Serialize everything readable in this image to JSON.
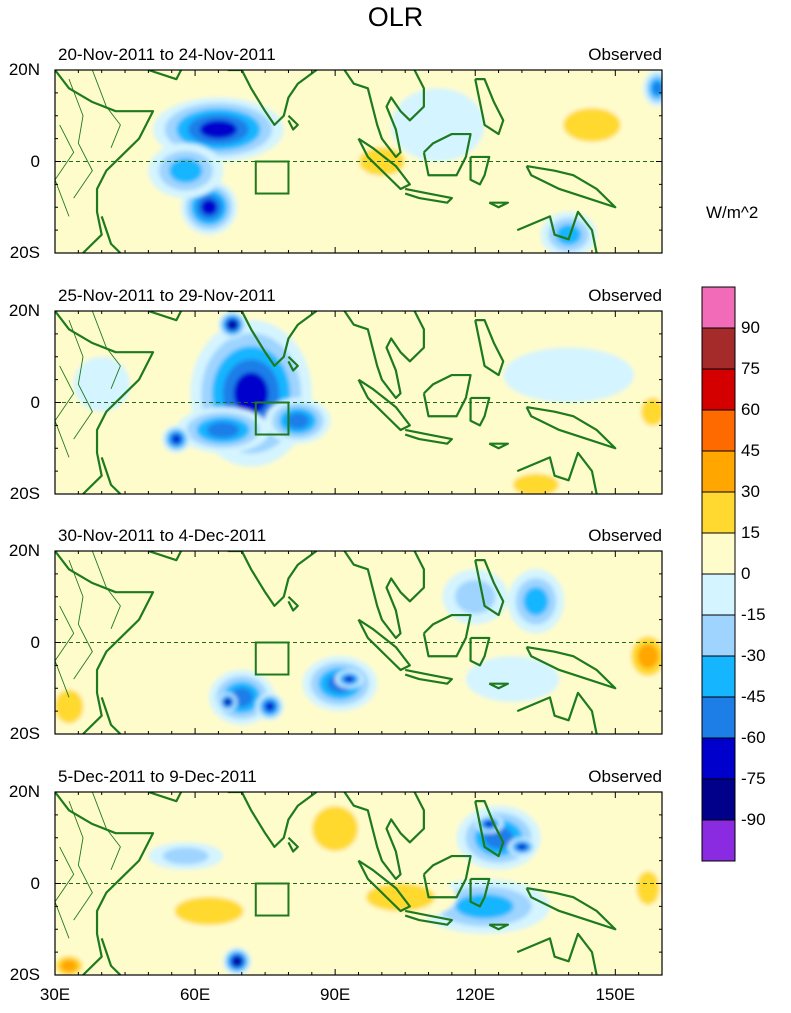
{
  "chart_data": {
    "type": "heatmap",
    "title": "OLR",
    "units": "W/m^2",
    "x_ticks": [
      "30E",
      "60E",
      "90E",
      "120E",
      "150E"
    ],
    "x_tick_values": [
      30,
      60,
      90,
      120,
      150
    ],
    "x_range": [
      30,
      160
    ],
    "y_ticks": [
      "20N",
      "0",
      "20S"
    ],
    "y_tick_values": [
      20,
      0,
      -20
    ],
    "y_range": [
      -20,
      20
    ],
    "colorbar": {
      "labels": [
        "90",
        "75",
        "60",
        "45",
        "30",
        "15",
        "0",
        "-15",
        "-30",
        "-45",
        "-60",
        "-75",
        "-90"
      ],
      "colors": [
        "#f26bb8",
        "#a52a2a",
        "#d40000",
        "#ff6a00",
        "#ffa600",
        "#ffd92f",
        "#fffccc",
        "#d4f4ff",
        "#9fd4ff",
        "#15b5ff",
        "#1e7ee8",
        "#0000cd",
        "#00008b",
        "#8a2be2"
      ]
    },
    "reference_box": {
      "lon": [
        73,
        80
      ],
      "lat": [
        -7,
        0
      ]
    },
    "panels": [
      {
        "label": "20-Nov-2011 to 24-Nov-2011",
        "tag": "Observed",
        "anomalies": [
          {
            "lon": 65,
            "lat": 7,
            "rx": 14,
            "ry": 7,
            "value": -70
          },
          {
            "lon": 63,
            "lat": -10,
            "rx": 6,
            "ry": 6,
            "value": -75
          },
          {
            "lon": 58,
            "lat": -2,
            "rx": 8,
            "ry": 6,
            "value": -40
          },
          {
            "lon": 100,
            "lat": 0,
            "rx": 8,
            "ry": 5,
            "value": 25
          },
          {
            "lon": 95,
            "lat": -10,
            "rx": 16,
            "ry": 6,
            "value": 20
          },
          {
            "lon": 128,
            "lat": 12,
            "rx": 10,
            "ry": 7,
            "value": 22
          },
          {
            "lon": 145,
            "lat": 8,
            "rx": 10,
            "ry": 6,
            "value": 25
          },
          {
            "lon": 140,
            "lat": -16,
            "rx": 6,
            "ry": 5,
            "value": -45
          },
          {
            "lon": 159,
            "lat": 16,
            "rx": 3,
            "ry": 4,
            "value": -60
          },
          {
            "lon": 112,
            "lat": 8,
            "rx": 10,
            "ry": 8,
            "value": -20
          },
          {
            "lon": 35,
            "lat": -10,
            "rx": 5,
            "ry": 6,
            "value": 20
          }
        ]
      },
      {
        "label": "25-Nov-2011 to 29-Nov-2011",
        "tag": "Observed",
        "anomalies": [
          {
            "lon": 72,
            "lat": 2,
            "rx": 13,
            "ry": 16,
            "value": -72
          },
          {
            "lon": 68,
            "lat": 17,
            "rx": 3,
            "ry": 3,
            "value": -92
          },
          {
            "lon": 66,
            "lat": -6,
            "rx": 10,
            "ry": 5,
            "value": -65
          },
          {
            "lon": 56,
            "lat": -8,
            "rx": 3,
            "ry": 3,
            "value": -70
          },
          {
            "lon": 82,
            "lat": -4,
            "rx": 7,
            "ry": 5,
            "value": -55
          },
          {
            "lon": 96,
            "lat": 14,
            "rx": 8,
            "ry": 6,
            "value": 20
          },
          {
            "lon": 110,
            "lat": -6,
            "rx": 10,
            "ry": 5,
            "value": 20
          },
          {
            "lon": 133,
            "lat": -18,
            "rx": 8,
            "ry": 4,
            "value": 35
          },
          {
            "lon": 158,
            "lat": -2,
            "rx": 4,
            "ry": 5,
            "value": 30
          },
          {
            "lon": 140,
            "lat": 6,
            "rx": 14,
            "ry": 6,
            "value": -20
          },
          {
            "lon": 40,
            "lat": 4,
            "rx": 6,
            "ry": 6,
            "value": -20
          }
        ]
      },
      {
        "label": "30-Nov-2011 to 4-Dec-2011",
        "tag": "Observed",
        "anomalies": [
          {
            "lon": 70,
            "lat": -12,
            "rx": 7,
            "ry": 6,
            "value": -62
          },
          {
            "lon": 67,
            "lat": -13,
            "rx": 2,
            "ry": 2,
            "value": -92
          },
          {
            "lon": 76,
            "lat": -14,
            "rx": 3,
            "ry": 3,
            "value": -76
          },
          {
            "lon": 91,
            "lat": -9,
            "rx": 8,
            "ry": 6,
            "value": -55
          },
          {
            "lon": 93,
            "lat": -8,
            "rx": 3,
            "ry": 2,
            "value": -80
          },
          {
            "lon": 120,
            "lat": 10,
            "rx": 7,
            "ry": 6,
            "value": -30
          },
          {
            "lon": 133,
            "lat": 9,
            "rx": 6,
            "ry": 7,
            "value": -40
          },
          {
            "lon": 128,
            "lat": -8,
            "rx": 10,
            "ry": 5,
            "value": -20
          },
          {
            "lon": 150,
            "lat": 14,
            "rx": 10,
            "ry": 6,
            "value": 20
          },
          {
            "lon": 157,
            "lat": -3,
            "rx": 5,
            "ry": 6,
            "value": 40
          },
          {
            "lon": 33,
            "lat": -14,
            "rx": 5,
            "ry": 6,
            "value": 35
          },
          {
            "lon": 38,
            "lat": 10,
            "rx": 6,
            "ry": 6,
            "value": 15
          }
        ]
      },
      {
        "label": "5-Dec-2011 to 9-Dec-2011",
        "tag": "Observed",
        "anomalies": [
          {
            "lon": 125,
            "lat": 10,
            "rx": 9,
            "ry": 7,
            "value": -62
          },
          {
            "lon": 123,
            "lat": 13,
            "rx": 3,
            "ry": 2,
            "value": -80
          },
          {
            "lon": 130,
            "lat": 8,
            "rx": 3,
            "ry": 2,
            "value": -82
          },
          {
            "lon": 122,
            "lat": -5,
            "rx": 14,
            "ry": 6,
            "value": -40
          },
          {
            "lon": 69,
            "lat": -17,
            "rx": 3,
            "ry": 3,
            "value": -85
          },
          {
            "lon": 58,
            "lat": 6,
            "rx": 8,
            "ry": 3,
            "value": -35
          },
          {
            "lon": 90,
            "lat": 12,
            "rx": 8,
            "ry": 8,
            "value": 28
          },
          {
            "lon": 104,
            "lat": -3,
            "rx": 12,
            "ry": 5,
            "value": 30
          },
          {
            "lon": 63,
            "lat": -6,
            "rx": 12,
            "ry": 5,
            "value": 25
          },
          {
            "lon": 33,
            "lat": -18,
            "rx": 4,
            "ry": 3,
            "value": 45
          },
          {
            "lon": 157,
            "lat": -1,
            "rx": 4,
            "ry": 6,
            "value": 30
          },
          {
            "lon": 145,
            "lat": 12,
            "rx": 8,
            "ry": 5,
            "value": 15
          }
        ]
      }
    ]
  }
}
